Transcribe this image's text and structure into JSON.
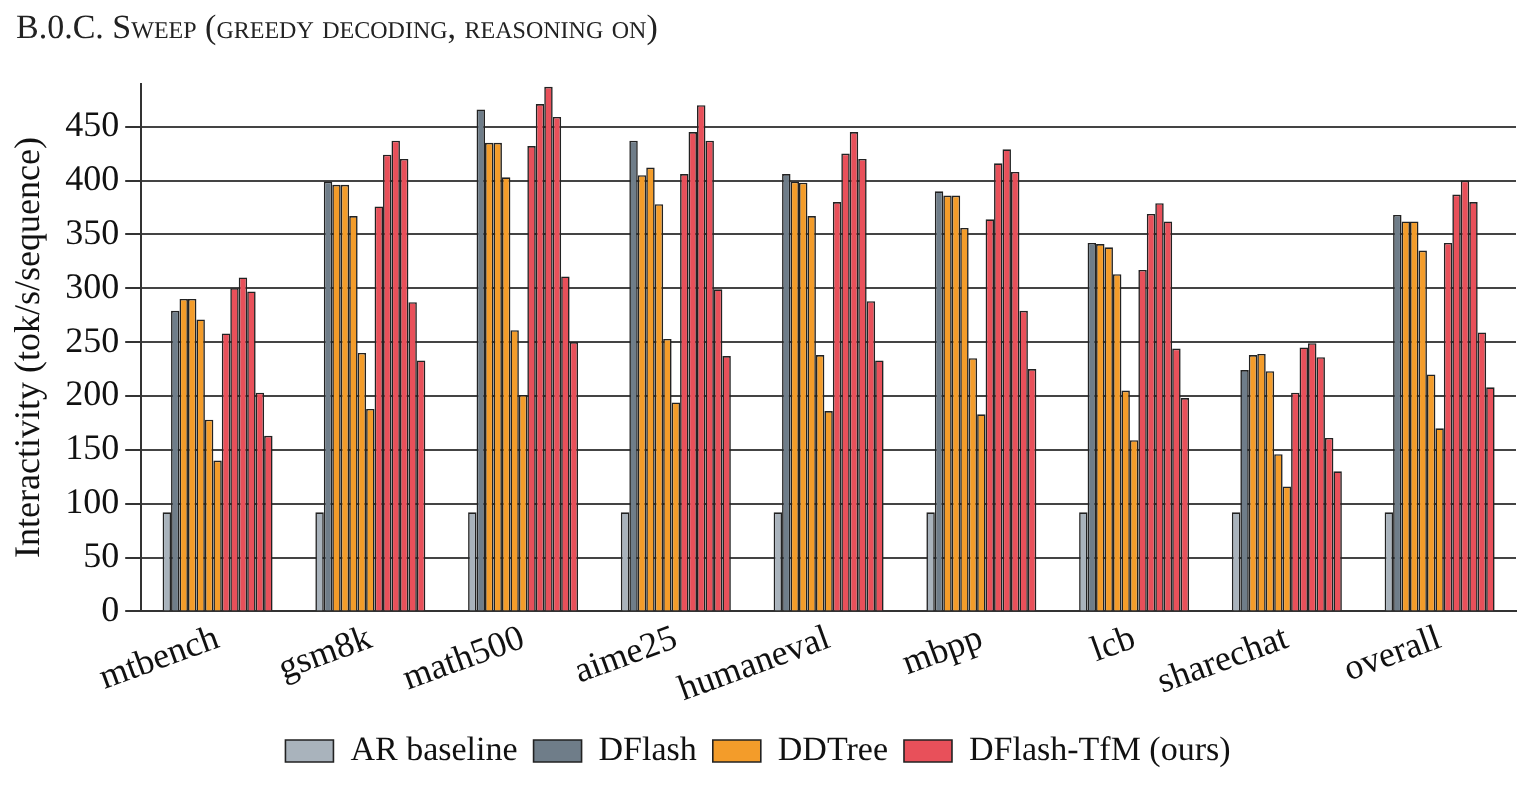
{
  "chart_data": {
    "type": "bar",
    "title": "B.0.C. Sweep (greedy decoding, reasoning on)",
    "ylabel": "Interactivity (tok/s/sequence)",
    "categories": [
      "mtbench",
      "gsm8k",
      "math500",
      "aime25",
      "humaneval",
      "mbpp",
      "lcb",
      "sharechat",
      "overall"
    ],
    "series": [
      {
        "name": "AR baseline",
        "color": "#a9b3bc",
        "values": [
          92,
          92,
          92,
          92,
          92,
          92,
          92,
          92,
          92
        ]
      },
      {
        "name": "DFlash",
        "color": "#6f7d89",
        "values": [
          279,
          399,
          466,
          437,
          406,
          390,
          342,
          224,
          368
        ]
      },
      {
        "name": "DDTree",
        "color": "#f39c2a",
        "values": [
          290,
          396,
          435,
          405,
          399,
          386,
          341,
          238,
          362
        ]
      },
      {
        "color": "#f39c2a",
        "values": [
          290,
          396,
          435,
          412,
          398,
          386,
          338,
          239,
          362
        ]
      },
      {
        "color": "#f39c2a",
        "values": [
          271,
          367,
          403,
          378,
          367,
          356,
          313,
          223,
          335
        ]
      },
      {
        "color": "#f39c2a",
        "values": [
          178,
          240,
          261,
          253,
          238,
          235,
          205,
          146,
          220
        ]
      },
      {
        "color": "#f39c2a",
        "values": [
          140,
          188,
          201,
          194,
          186,
          183,
          159,
          116,
          170
        ]
      },
      {
        "name": "DFlash-TfM (ours)",
        "color": "#e8505a",
        "values": [
          258,
          376,
          432,
          406,
          380,
          364,
          317,
          203,
          342
        ]
      },
      {
        "color": "#e8505a",
        "values": [
          300,
          424,
          471,
          445,
          425,
          416,
          369,
          245,
          387
        ]
      },
      {
        "color": "#e8505a",
        "values": [
          310,
          437,
          487,
          470,
          445,
          429,
          379,
          249,
          400
        ]
      },
      {
        "color": "#e8505a",
        "values": [
          297,
          420,
          459,
          437,
          420,
          408,
          362,
          236,
          380
        ]
      },
      {
        "color": "#e8505a",
        "values": [
          203,
          287,
          311,
          299,
          288,
          279,
          244,
          161,
          259
        ]
      },
      {
        "color": "#e8505a",
        "values": [
          163,
          233,
          250,
          237,
          233,
          225,
          198,
          130,
          208
        ]
      }
    ],
    "ylim": [
      0,
      490
    ],
    "yticks": [
      0,
      50,
      100,
      150,
      200,
      250,
      300,
      350,
      400,
      450
    ],
    "grid": "y",
    "legend": "bottom"
  }
}
